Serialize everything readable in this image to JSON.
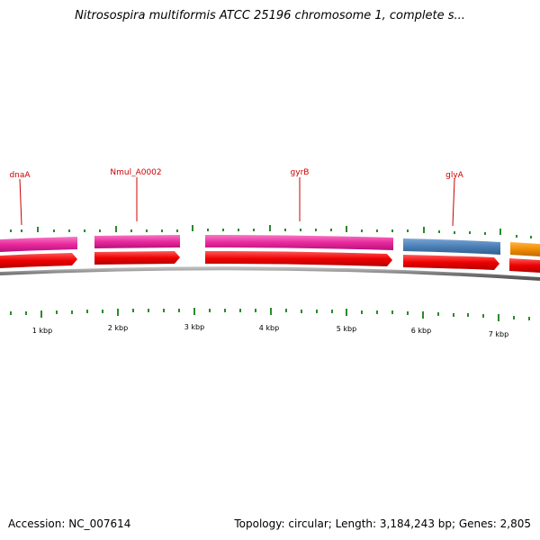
{
  "title": "Nitrosospira multiformis ATCC 25196 chromosome 1, complete s...",
  "footer": {
    "accession": "Accession: NC_007614",
    "summary": "Topology: circular; Length: 3,184,243 bp; Genes: 2,805"
  },
  "gene_labels": [
    "dnaA",
    "Nmul_A0002",
    "gyrB",
    "glyA"
  ],
  "kbp_labels": [
    "1 kbp",
    "2 kbp",
    "3 kbp",
    "4 kbp",
    "5 kbp",
    "6 kbp",
    "7 kbp"
  ],
  "feature_colors": {
    "label": "#cc0000",
    "gene_pink": "#e8299e",
    "gene_blue": "#4a7fb5",
    "gene_orange": "#f08c00",
    "cds_red": "#ee0000",
    "backbone": "#777777",
    "ticks": "#2a8a2a"
  }
}
